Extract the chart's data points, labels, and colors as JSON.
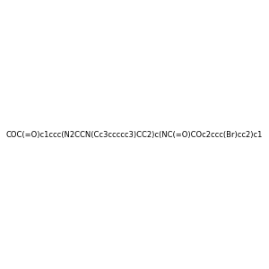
{
  "smiles": "COC(=O)c1ccc(N2CCN(Cc3ccccc3)CC2)c(NC(=O)COc2ccc(Br)cc2)c1",
  "title": "",
  "background_color": "#e8e8e8",
  "figure_size": [
    3.0,
    3.0
  ],
  "dpi": 100,
  "atom_colors": {
    "N": "#0000ff",
    "O": "#ff0000",
    "Br": "#a04000"
  }
}
